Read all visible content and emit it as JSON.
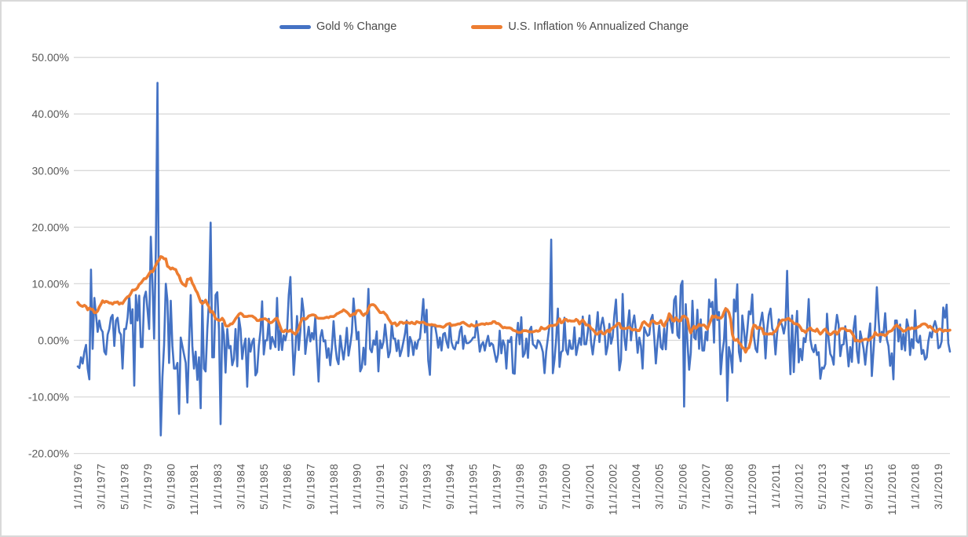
{
  "chart_data": {
    "type": "line",
    "title": "",
    "xlabel": "",
    "ylabel": "",
    "ylim": [
      -20,
      50
    ],
    "grid": "horizontal-only",
    "legend_position": "top-center",
    "background": "#ffffff",
    "gridline_color": "#d9d9d9",
    "axis_label_color": "#595959",
    "y_ticks": [
      "50.00%",
      "40.00%",
      "30.00%",
      "20.00%",
      "10.00%",
      "0.00%",
      "-10.00%",
      "-20.00%"
    ],
    "y_tick_values": [
      50,
      40,
      30,
      20,
      10,
      0,
      -10,
      -20
    ],
    "x_label_interval_months": 14,
    "x_labels": [
      "1/1/1976",
      "3/1/1977",
      "5/1/1978",
      "7/1/1979",
      "9/1/1980",
      "11/1/1981",
      "1/1/1983",
      "3/1/1984",
      "5/1/1985",
      "7/1/1986",
      "9/1/1987",
      "11/1/1988",
      "1/1/1990",
      "3/1/1991",
      "5/1/1992",
      "7/1/1993",
      "9/1/1994",
      "11/1/1995",
      "1/1/1997",
      "3/1/1998",
      "5/1/1999",
      "7/1/2000",
      "9/1/2001",
      "11/1/2002",
      "1/1/2004",
      "3/1/2005",
      "5/1/2006",
      "7/1/2007",
      "9/1/2008",
      "11/1/2009",
      "1/1/2011",
      "3/1/2012",
      "5/1/2013",
      "7/1/2014",
      "9/1/2015",
      "11/1/2016",
      "1/1/2018",
      "3/1/2019"
    ],
    "x_start": "1/1/1976",
    "x_frequency": "monthly",
    "series": [
      {
        "name": "Gold % Change",
        "color": "#4472C4",
        "unit": "%",
        "values": [
          -4.6,
          -4.9,
          -3.0,
          -4.1,
          -2.0,
          -0.8,
          -5.0,
          -6.9,
          12.5,
          -1.5,
          7.5,
          4.5,
          1.5,
          3.5,
          2.0,
          1.5,
          -2.0,
          -2.5,
          1.0,
          2.0,
          4.0,
          4.5,
          -1.0,
          3.5,
          4.0,
          1.5,
          1.0,
          -5.0,
          2.0,
          2.0,
          4.0,
          8.0,
          3.0,
          5.5,
          -8.0,
          8.0,
          3.5,
          7.9,
          -1.2,
          -1.2,
          7.5,
          8.6,
          5.4,
          2.0,
          18.3,
          10.1,
          0.3,
          16.1,
          45.5,
          -1.5,
          -16.8,
          -6.5,
          -0.8,
          10.0,
          7.0,
          -4.0,
          7.0,
          -1.0,
          -5.0,
          -5.0,
          -4.0,
          -13.0,
          0.5,
          -1.0,
          -2.5,
          -4.0,
          -11.0,
          -0.5,
          8.0,
          -1.0,
          -5.0,
          -2.0,
          -7.0,
          -3.0,
          -12.0,
          7.0,
          -5.0,
          -5.5,
          2.0,
          7.0,
          20.8,
          -3.0,
          -3.0,
          8.0,
          8.5,
          2.0,
          -14.8,
          3.0,
          1.0,
          -5.7,
          2.0,
          -1.4,
          -1.0,
          -4.4,
          -3.3,
          2.0,
          -4.6,
          4.0,
          2.0,
          -3.3,
          -1.0,
          0.3,
          -8.2,
          0.3,
          -2.0,
          -0.3,
          0.3,
          -6.2,
          -5.6,
          -1.0,
          1.7,
          6.9,
          -2.5,
          0.0,
          0.0,
          3.8,
          -1.5,
          0.6,
          -0.3,
          -1.2,
          7.5,
          -1.7,
          2.1,
          -1.7,
          0.9,
          0.0,
          1.5,
          8.0,
          11.2,
          1.4,
          -6.1,
          -1.8,
          4.3,
          -1.7,
          1.7,
          7.4,
          5.0,
          -2.4,
          0.2,
          2.4,
          -0.2,
          1.3,
          0.2,
          4.1,
          -1.9,
          -7.3,
          0.5,
          1.8,
          -0.2,
          0.0,
          -3.1,
          -1.4,
          -4.4,
          -1.2,
          3.4,
          -0.7,
          -3.3,
          -4.2,
          0.8,
          -1.5,
          -3.4,
          -1.1,
          2.2,
          -2.7,
          -0.8,
          1.4,
          7.4,
          3.8,
          0.2,
          1.5,
          -5.5,
          -4.8,
          -1.3,
          -4.3,
          2.5,
          9.1,
          -1.5,
          -2.1,
          0.0,
          -0.8,
          1.6,
          -5.5,
          0.0,
          -1.4,
          -0.3,
          2.8,
          0.0,
          -3.0,
          -2.0,
          2.9,
          0.3,
          0.3,
          -1.9,
          0.0,
          -2.8,
          -1.7,
          -0.3,
          1.2,
          3.5,
          -2.8,
          0.6,
          -0.3,
          -2.6,
          -0.3,
          -1.5,
          0.0,
          0.3,
          3.6,
          7.3,
          1.4,
          5.4,
          -3.6,
          -6.1,
          2.5,
          2.5,
          2.7,
          1.0,
          -1.3,
          0.5,
          -1.8,
          1.1,
          1.3,
          -0.3,
          -1.3,
          2.9,
          -0.3,
          -1.3,
          -1.6,
          -0.3,
          -0.5,
          1.6,
          2.4,
          -1.5,
          0.8,
          -0.5,
          -0.5,
          -0.3,
          0.0,
          0.5,
          0.5,
          3.4,
          1.0,
          -2.0,
          -0.8,
          -0.3,
          -1.8,
          -0.3,
          0.8,
          -1.0,
          -0.5,
          -0.8,
          -2.4,
          -3.8,
          -2.5,
          1.7,
          -2.3,
          0.0,
          -0.9,
          -5.0,
          0.0,
          -0.3,
          0.6,
          -5.8,
          -5.9,
          0.3,
          3.1,
          -0.7,
          4.1,
          -2.9,
          -2.3,
          0.3,
          -3.1,
          1.8,
          2.4,
          -0.7,
          -1.0,
          -1.4,
          0.0,
          -0.3,
          -1.0,
          -2.1,
          -5.8,
          -1.9,
          0.4,
          2.7,
          17.8,
          -5.8,
          -3.4,
          0.4,
          5.6,
          -4.7,
          -2.1,
          -1.8,
          4.0,
          -1.7,
          -2.5,
          0.0,
          -1.5,
          -1.5,
          2.3,
          -2.6,
          -1.1,
          0.4,
          -0.8,
          4.2,
          -0.7,
          -0.7,
          1.5,
          4.4,
          -0.4,
          -2.5,
          0.0,
          1.8,
          5.0,
          -0.3,
          2.7,
          4.0,
          2.2,
          -2.5,
          -1.0,
          2.9,
          -0.6,
          0.6,
          4.4,
          7.2,
          0.6,
          -5.3,
          -3.5,
          8.2,
          0.6,
          -1.7,
          2.6,
          5.3,
          0.0,
          2.9,
          4.4,
          1.7,
          -2.2,
          0.5,
          -1.0,
          -5.0,
          2.3,
          1.5,
          0.8,
          1.0,
          3.7,
          4.5,
          0.7,
          -4.1,
          -0.2,
          2.6,
          -1.2,
          -1.6,
          2.1,
          -1.6,
          3.3,
          4.1,
          3.1,
          1.3,
          7.1,
          7.8,
          0.9,
          0.4,
          9.7,
          10.5,
          -11.7,
          6.4,
          -0.3,
          -5.2,
          -2.2,
          7.0,
          0.5,
          0.2,
          5.4,
          -1.5,
          3.7,
          -1.8,
          -1.8,
          1.5,
          0.0,
          7.2,
          5.9,
          6.8,
          -0.4,
          10.8,
          3.6,
          5.0,
          -6.0,
          -2.3,
          0.0,
          5.7,
          -10.7,
          -1.2,
          -2.7,
          -5.7,
          7.2,
          5.1,
          9.9,
          -2.0,
          -3.7,
          4.4,
          1.8,
          -1.3,
          1.6,
          5.1,
          4.6,
          8.1,
          0.7,
          -1.5,
          -2.1,
          1.6,
          3.2,
          4.9,
          2.3,
          -3.2,
          1.9,
          4.5,
          5.6,
          2.1,
          1.5,
          -2.5,
          1.3,
          3.7,
          3.4,
          2.6,
          1.2,
          2.9,
          12.3,
          0.9,
          -6.0,
          4.4,
          -5.6,
          0.9,
          5.2,
          -3.9,
          -1.5,
          -3.5,
          0.4,
          -0.3,
          2.1,
          7.3,
          0.2,
          -1.5,
          -2.1,
          -0.8,
          -2.6,
          -2.1,
          -6.8,
          -4.8,
          -5.0,
          -4.2,
          4.7,
          0.1,
          -2.4,
          -3.0,
          -4.3,
          1.9,
          4.5,
          2.8,
          -2.8,
          -0.8,
          -0.7,
          2.5,
          -1.1,
          -4.6,
          -1.2,
          -3.8,
          2.1,
          4.3,
          -1.9,
          -4.0,
          1.6,
          0.2,
          -1.5,
          -4.3,
          -1.2,
          0.7,
          3.0,
          -6.3,
          -1.7,
          2.7,
          9.4,
          3.8,
          -0.3,
          1.5,
          1.2,
          4.8,
          0.2,
          -1.0,
          -4.5,
          -2.3,
          -6.9,
          3.5,
          3.5,
          -0.2,
          2.8,
          -1.6,
          1.1,
          -1.8,
          3.7,
          2.4,
          -2.6,
          0.2,
          -1.4,
          5.3,
          -0.1,
          -0.4,
          0.8,
          -2.4,
          -1.7,
          -3.4,
          -3.0,
          -0.2,
          1.4,
          0.5,
          2.4,
          3.4,
          2.2,
          -1.4,
          -1.2,
          -0.2,
          5.8,
          4.0,
          6.3,
          -0.5,
          -2.0
        ]
      },
      {
        "name": "U.S. Inflation % Annualized Change",
        "color": "#ED7D31",
        "unit": "%",
        "values": [
          6.7,
          6.3,
          6.1,
          6.0,
          6.2,
          6.0,
          5.4,
          5.7,
          5.5,
          5.5,
          4.9,
          4.9,
          5.2,
          5.9,
          6.4,
          7.0,
          6.7,
          6.9,
          6.8,
          6.6,
          6.6,
          6.4,
          6.7,
          6.7,
          6.8,
          6.4,
          6.6,
          6.5,
          7.0,
          7.4,
          7.7,
          7.8,
          8.3,
          8.9,
          8.9,
          9.0,
          9.3,
          9.9,
          10.1,
          10.5,
          10.9,
          10.9,
          11.3,
          11.8,
          12.2,
          12.1,
          12.6,
          13.3,
          13.9,
          14.2,
          14.8,
          14.7,
          14.4,
          14.4,
          13.1,
          12.9,
          12.6,
          12.8,
          12.6,
          12.5,
          11.8,
          11.4,
          10.5,
          10.0,
          9.8,
          9.6,
          10.8,
          10.8,
          11.0,
          10.1,
          9.6,
          8.9,
          8.4,
          7.6,
          6.8,
          6.5,
          6.7,
          7.1,
          6.4,
          5.9,
          5.0,
          5.1,
          4.6,
          3.8,
          3.7,
          3.5,
          3.6,
          3.9,
          3.5,
          2.6,
          2.5,
          2.6,
          2.9,
          2.9,
          3.3,
          3.8,
          4.2,
          4.6,
          4.8,
          4.6,
          4.2,
          4.2,
          4.2,
          4.3,
          4.3,
          4.3,
          4.1,
          3.9,
          3.5,
          3.5,
          3.7,
          3.7,
          3.8,
          3.8,
          3.6,
          3.3,
          3.1,
          3.2,
          3.5,
          3.8,
          3.9,
          3.1,
          2.3,
          1.6,
          1.5,
          1.8,
          1.6,
          1.6,
          1.8,
          1.5,
          1.3,
          1.1,
          1.5,
          2.1,
          3.0,
          3.8,
          3.9,
          3.7,
          3.9,
          4.3,
          4.4,
          4.5,
          4.5,
          4.4,
          4.0,
          3.9,
          3.9,
          3.9,
          3.9,
          4.0,
          4.1,
          4.0,
          4.2,
          4.2,
          4.2,
          4.4,
          4.7,
          4.8,
          5.0,
          5.1,
          5.4,
          5.2,
          5.0,
          4.7,
          4.3,
          4.5,
          4.7,
          4.6,
          5.2,
          5.3,
          5.2,
          4.7,
          4.4,
          4.7,
          4.8,
          5.6,
          6.2,
          6.3,
          6.3,
          6.1,
          5.7,
          5.3,
          4.9,
          4.9,
          5.0,
          4.7,
          4.4,
          3.8,
          3.4,
          2.9,
          3.0,
          3.1,
          2.6,
          2.8,
          3.2,
          3.2,
          3.0,
          3.1,
          3.2,
          3.1,
          3.0,
          3.2,
          3.0,
          2.9,
          3.3,
          3.2,
          3.1,
          3.2,
          3.2,
          3.0,
          2.8,
          2.8,
          2.7,
          2.8,
          2.7,
          2.7,
          2.5,
          2.5,
          2.5,
          2.4,
          2.3,
          2.5,
          2.8,
          2.9,
          3.0,
          2.6,
          2.7,
          2.7,
          2.8,
          2.9,
          2.9,
          3.1,
          3.2,
          3.0,
          2.8,
          2.6,
          2.5,
          2.8,
          2.6,
          2.5,
          2.7,
          2.7,
          2.8,
          2.9,
          2.9,
          2.8,
          3.0,
          2.9,
          3.0,
          3.0,
          3.3,
          3.3,
          3.0,
          3.0,
          2.8,
          2.5,
          2.2,
          2.3,
          2.2,
          2.2,
          2.2,
          2.1,
          1.8,
          1.7,
          1.6,
          1.4,
          1.4,
          1.4,
          1.7,
          1.7,
          1.7,
          1.6,
          1.5,
          1.5,
          1.5,
          1.6,
          1.7,
          1.6,
          1.7,
          2.3,
          2.1,
          2.0,
          2.1,
          2.3,
          2.6,
          2.6,
          2.6,
          2.7,
          2.7,
          3.2,
          3.8,
          3.1,
          3.2,
          3.7,
          3.7,
          3.4,
          3.5,
          3.4,
          3.4,
          3.4,
          3.7,
          3.5,
          2.9,
          3.3,
          3.6,
          3.2,
          2.7,
          2.7,
          2.6,
          2.1,
          1.9,
          1.6,
          1.1,
          1.1,
          1.5,
          1.6,
          1.2,
          1.1,
          1.5,
          1.8,
          1.5,
          2.0,
          2.2,
          2.4,
          2.6,
          3.0,
          3.0,
          2.2,
          2.1,
          2.1,
          2.1,
          2.2,
          2.3,
          2.0,
          1.8,
          1.9,
          1.9,
          1.7,
          1.7,
          2.3,
          3.1,
          3.3,
          3.0,
          2.7,
          2.5,
          3.2,
          3.5,
          3.3,
          3.0,
          3.0,
          3.1,
          3.5,
          2.8,
          2.5,
          3.2,
          3.6,
          4.7,
          4.3,
          3.5,
          3.4,
          4.0,
          3.6,
          3.4,
          3.5,
          4.2,
          4.3,
          4.1,
          3.8,
          2.1,
          1.3,
          2.0,
          2.5,
          2.1,
          2.4,
          2.8,
          2.6,
          2.7,
          2.7,
          2.4,
          2.0,
          2.8,
          3.5,
          4.3,
          4.1,
          4.3,
          4.0,
          4.0,
          3.9,
          4.2,
          5.0,
          5.6,
          5.4,
          4.9,
          3.7,
          1.1,
          0.1,
          0.0,
          0.2,
          -0.4,
          -0.7,
          -1.3,
          -1.4,
          -2.1,
          -1.5,
          -1.3,
          -0.2,
          1.8,
          2.7,
          2.6,
          2.1,
          2.3,
          2.2,
          2.0,
          1.1,
          1.2,
          1.1,
          1.1,
          1.2,
          1.1,
          1.5,
          1.6,
          2.1,
          2.7,
          3.2,
          3.6,
          3.6,
          3.6,
          3.8,
          3.9,
          3.5,
          3.4,
          3.0,
          2.9,
          2.9,
          2.7,
          2.3,
          1.7,
          1.7,
          1.4,
          1.7,
          2.0,
          2.2,
          1.8,
          1.7,
          1.6,
          2.0,
          1.5,
          1.1,
          1.4,
          1.8,
          2.0,
          1.5,
          1.2,
          1.0,
          1.2,
          1.5,
          1.6,
          1.1,
          1.5,
          2.0,
          2.1,
          2.1,
          2.0,
          1.7,
          1.7,
          1.7,
          1.3,
          0.8,
          -0.1,
          0.0,
          -0.1,
          -0.2,
          0.0,
          0.1,
          0.2,
          0.2,
          0.0,
          0.2,
          0.5,
          0.7,
          1.4,
          1.0,
          0.9,
          1.1,
          1.0,
          1.0,
          0.8,
          1.1,
          1.5,
          1.6,
          1.7,
          2.1,
          2.5,
          2.7,
          2.4,
          2.2,
          1.9,
          1.6,
          1.7,
          1.9,
          2.2,
          2.0,
          2.2,
          2.1,
          2.1,
          2.2,
          2.4,
          2.5,
          2.8,
          2.9,
          2.9,
          2.7,
          2.3,
          2.5,
          2.2,
          1.9,
          1.6,
          1.5,
          1.9,
          2.0,
          1.8,
          1.6,
          1.8,
          1.7,
          1.7,
          1.8
        ]
      }
    ]
  }
}
